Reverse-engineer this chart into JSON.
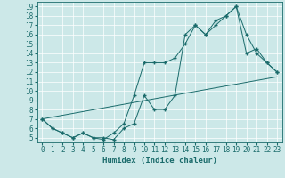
{
  "xlabel": "Humidex (Indice chaleur)",
  "bg_color": "#cce8e8",
  "line_color": "#1a6b6b",
  "grid_color": "#ffffff",
  "xlim": [
    -0.5,
    23.5
  ],
  "ylim": [
    4.5,
    19.5
  ],
  "xticks": [
    0,
    1,
    2,
    3,
    4,
    5,
    6,
    7,
    8,
    9,
    10,
    11,
    12,
    13,
    14,
    15,
    16,
    17,
    18,
    19,
    20,
    21,
    22,
    23
  ],
  "yticks": [
    5,
    6,
    7,
    8,
    9,
    10,
    11,
    12,
    13,
    14,
    15,
    16,
    17,
    18,
    19
  ],
  "line1_x": [
    0,
    1,
    2,
    3,
    4,
    5,
    6,
    7,
    8,
    9,
    10,
    11,
    12,
    13,
    14,
    15,
    16,
    17,
    18,
    19,
    20,
    21,
    22,
    23
  ],
  "line1_y": [
    7,
    6,
    5.5,
    5,
    5.5,
    5,
    4.8,
    5.5,
    6.5,
    9.5,
    13,
    13,
    13,
    13.5,
    15,
    17,
    16,
    17,
    18,
    19,
    16,
    14,
    13,
    12
  ],
  "line2_x": [
    0,
    1,
    2,
    3,
    4,
    5,
    6,
    7,
    8,
    9,
    10,
    11,
    12,
    13,
    14,
    15,
    16,
    17,
    18,
    19,
    20,
    21,
    22,
    23
  ],
  "line2_y": [
    7,
    6,
    5.5,
    5,
    5.5,
    5,
    5,
    4.8,
    6,
    6.5,
    9.5,
    8,
    8,
    9.5,
    16,
    17,
    16,
    17.5,
    18,
    19,
    14,
    14.5,
    13,
    12
  ],
  "line3_x": [
    0,
    23
  ],
  "line3_y": [
    7,
    11.5
  ]
}
